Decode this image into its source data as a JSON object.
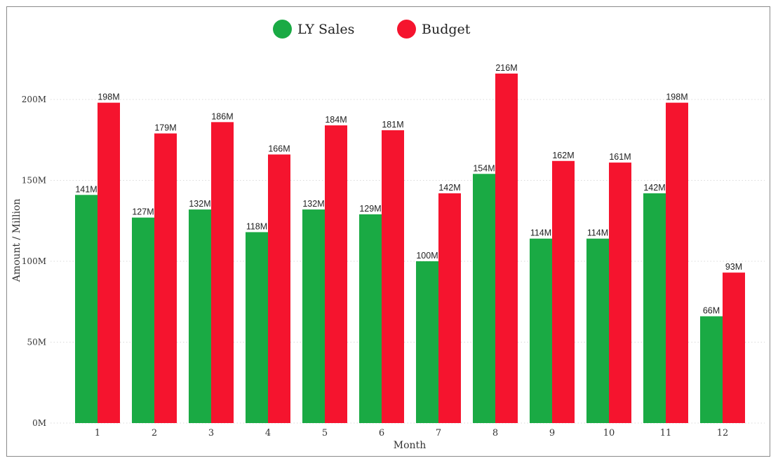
{
  "chart_data": {
    "type": "bar",
    "xlabel": "Month",
    "ylabel": "Amount / Million",
    "categories": [
      "1",
      "2",
      "3",
      "4",
      "5",
      "6",
      "7",
      "8",
      "9",
      "10",
      "11",
      "12"
    ],
    "series": [
      {
        "name": "LY Sales",
        "color": "#1aaa44",
        "values": [
          141,
          127,
          132,
          118,
          132,
          129,
          100,
          154,
          114,
          114,
          142,
          66
        ]
      },
      {
        "name": "Budget",
        "color": "#f5142e",
        "values": [
          198,
          179,
          186,
          166,
          184,
          181,
          142,
          216,
          162,
          161,
          198,
          93
        ]
      }
    ],
    "data_labels": [
      [
        "141M",
        "127M",
        "132M",
        "118M",
        "132M",
        "129M",
        "100M",
        "154M",
        "114M",
        "114M",
        "142M",
        "66M"
      ],
      [
        "198M",
        "179M",
        "186M",
        "166M",
        "184M",
        "181M",
        "142M",
        "216M",
        "162M",
        "161M",
        "198M",
        "93M"
      ]
    ],
    "ylim": [
      0,
      230
    ],
    "yticks": [
      0,
      50,
      100,
      150,
      200
    ],
    "ytick_labels": [
      "0M",
      "50M",
      "100M",
      "150M",
      "200M"
    ],
    "grid": true,
    "legend_position": "top-center"
  }
}
